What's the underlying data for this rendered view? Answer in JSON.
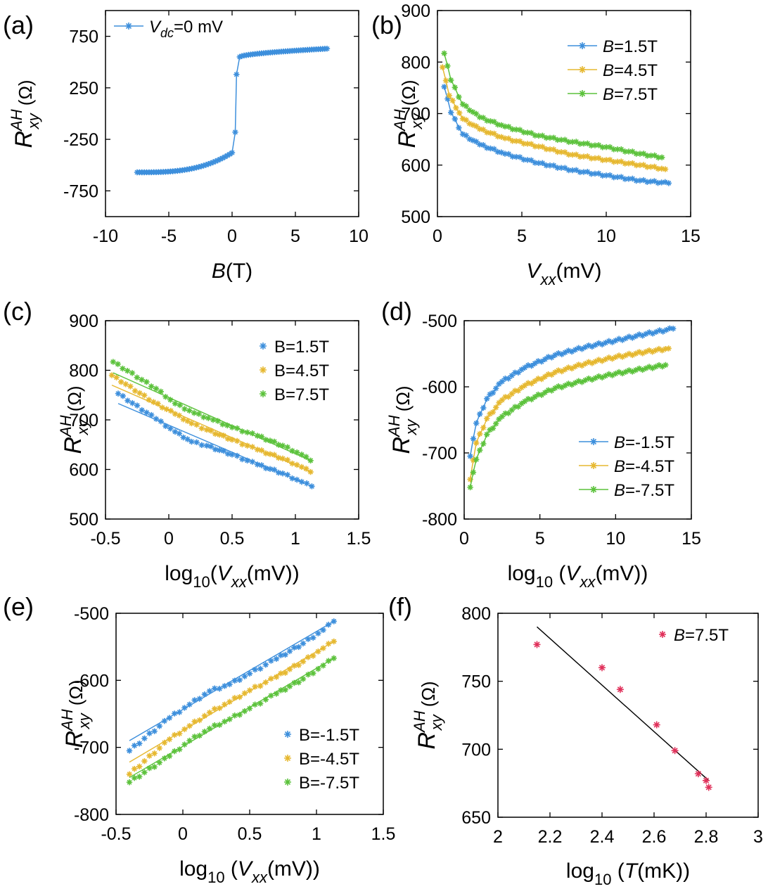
{
  "chart_data": [
    {
      "panel": "(a)",
      "type": "line",
      "xlabel": {
        "italic": "B",
        "rest": "(T)"
      },
      "ylabel": {
        "main": "R",
        "sup": "AH",
        "sub": "xy",
        "unit": "(Ω)"
      },
      "xlim": [
        -10,
        10
      ],
      "ylim": [
        -1000,
        1000
      ],
      "xticks": [
        -10,
        -5,
        0,
        5,
        10
      ],
      "yticks": [
        -750,
        -250,
        250,
        750
      ],
      "legend": {
        "position": "top-left"
      },
      "series": [
        {
          "name": "Vdc=0 mV",
          "label_parts": {
            "italic": "V",
            "sub": "dc",
            "rest": "=0 mV"
          },
          "color": "#3d8fdc",
          "marker": "star",
          "line": true,
          "curve": {
            "kind": "hysteresis",
            "x_start": -7.5,
            "x_end": 7.5,
            "low_start": -570,
            "low_end": -380,
            "high_start": 550,
            "high_end": 630,
            "switch_x": 0.3
          }
        }
      ]
    },
    {
      "panel": "(b)",
      "type": "line",
      "xlabel": {
        "italic": "V",
        "sub": "xx",
        "rest": "(mV)"
      },
      "ylabel": {
        "main": "R",
        "sup": "AH",
        "sub": "xy",
        "unit": "(Ω)"
      },
      "xlim": [
        0,
        15
      ],
      "ylim": [
        500,
        900
      ],
      "xticks": [
        0,
        5,
        10,
        15
      ],
      "yticks": [
        500,
        600,
        700,
        800,
        900
      ],
      "legend": {
        "position": "top-right"
      },
      "series": [
        {
          "name": "B=1.5T",
          "label_parts": {
            "italic": "B",
            "rest": "=1.5T"
          },
          "color": "#3d8fdc",
          "marker": "star",
          "line": true,
          "x": [
            0.4,
            0.8,
            1.5,
            2.5,
            4,
            6,
            8,
            10,
            12,
            13.7
          ],
          "y": [
            752,
            702,
            660,
            640,
            622,
            604,
            590,
            580,
            570,
            565
          ]
        },
        {
          "name": "B=4.5T",
          "label_parts": {
            "italic": "B",
            "rest": "=4.5T"
          },
          "color": "#e6b830",
          "marker": "star",
          "line": true,
          "x": [
            0.3,
            0.7,
            1.5,
            2.5,
            4,
            6,
            8,
            10,
            12,
            13.5
          ],
          "y": [
            790,
            735,
            690,
            670,
            652,
            636,
            620,
            610,
            600,
            592
          ]
        },
        {
          "name": "B=7.5T",
          "label_parts": {
            "italic": "B",
            "rest": "=7.5T"
          },
          "color": "#5cc23c",
          "marker": "star",
          "line": true,
          "x": [
            0.4,
            0.8,
            1.5,
            2.5,
            4,
            6,
            8,
            10,
            12,
            13.3
          ],
          "y": [
            817,
            765,
            718,
            693,
            675,
            657,
            645,
            635,
            622,
            615
          ]
        }
      ]
    },
    {
      "panel": "(c)",
      "type": "scatter",
      "xlabel": {
        "pre": "log",
        "pre_sub": "10",
        "open": "(",
        "italic": "V",
        "sub": "xx",
        "rest": "(mV))"
      },
      "ylabel": {
        "main": "R",
        "sup": "AH",
        "sub": "xy",
        "unit": "(Ω)"
      },
      "xlim": [
        -0.5,
        1.5
      ],
      "ylim": [
        500,
        900
      ],
      "xticks": [
        -0.5,
        0,
        0.5,
        1,
        1.5
      ],
      "yticks": [
        500,
        600,
        700,
        800,
        900
      ],
      "legend": {
        "position": "top-right"
      },
      "series": [
        {
          "name": "B=1.5T",
          "color": "#3d8fdc",
          "marker": "star",
          "x": [
            -0.4,
            -0.1,
            0.05,
            0.18,
            0.3,
            0.5,
            0.7,
            0.9,
            1.05,
            1.13
          ],
          "y": [
            753,
            702,
            676,
            656,
            648,
            630,
            610,
            592,
            575,
            566
          ],
          "fit": {
            "x": [
              -0.4,
              1.13
            ],
            "y": [
              733,
              566
            ]
          }
        },
        {
          "name": "B=4.5T",
          "color": "#e6b830",
          "marker": "star",
          "x": [
            -0.45,
            -0.12,
            0.05,
            0.18,
            0.3,
            0.5,
            0.7,
            0.9,
            1.05,
            1.12
          ],
          "y": [
            790,
            736,
            712,
            693,
            680,
            660,
            640,
            622,
            605,
            595
          ],
          "fit": {
            "x": [
              -0.45,
              1.12
            ],
            "y": [
              770,
              595
            ]
          }
        },
        {
          "name": "B=7.5T",
          "color": "#5cc23c",
          "marker": "star",
          "x": [
            -0.44,
            -0.1,
            0.05,
            0.2,
            0.35,
            0.5,
            0.7,
            0.9,
            1.05,
            1.12
          ],
          "y": [
            817,
            763,
            733,
            714,
            700,
            685,
            668,
            648,
            630,
            618
          ],
          "fit": {
            "x": [
              -0.44,
              1.12
            ],
            "y": [
              795,
              618
            ]
          }
        }
      ]
    },
    {
      "panel": "(d)",
      "type": "line",
      "xlabel": {
        "pre": "log",
        "pre_sub": "10",
        "open": " (",
        "italic": "V",
        "sub": "xx",
        "rest": "(mV))"
      },
      "ylabel": {
        "main": "R",
        "sup": "AH",
        "sub": "xy",
        "unit": "(Ω)"
      },
      "xlim": [
        0,
        15
      ],
      "ylim": [
        -800,
        -500
      ],
      "xticks": [
        0,
        5,
        10,
        15
      ],
      "yticks": [
        -800,
        -700,
        -600,
        -500
      ],
      "legend": {
        "position": "bottom-right"
      },
      "series": [
        {
          "name": "B=-1.5T",
          "label_parts": {
            "italic": "B",
            "rest": "=-1.5T"
          },
          "color": "#3d8fdc",
          "marker": "star",
          "line": true,
          "x": [
            0.4,
            0.8,
            1.5,
            2.5,
            4,
            6,
            8,
            10,
            12,
            13.8
          ],
          "y": [
            -705,
            -655,
            -618,
            -592,
            -571,
            -552,
            -540,
            -530,
            -520,
            -512
          ]
        },
        {
          "name": "B=-4.5T",
          "label_parts": {
            "italic": "B",
            "rest": "=-4.5T"
          },
          "color": "#e6b830",
          "marker": "star",
          "line": true,
          "x": [
            0.4,
            0.8,
            1.5,
            2.5,
            4,
            6,
            8,
            10,
            12,
            13.5
          ],
          "y": [
            -740,
            -685,
            -648,
            -620,
            -598,
            -578,
            -565,
            -555,
            -547,
            -542
          ]
        },
        {
          "name": "B=-7.5T",
          "label_parts": {
            "italic": "B",
            "rest": "=-7.5T"
          },
          "color": "#5cc23c",
          "marker": "star",
          "line": true,
          "x": [
            0.4,
            0.8,
            1.5,
            2.5,
            4,
            6,
            8,
            10,
            12,
            13.3
          ],
          "y": [
            -752,
            -710,
            -672,
            -645,
            -622,
            -602,
            -590,
            -580,
            -572,
            -567
          ]
        }
      ]
    },
    {
      "panel": "(e)",
      "type": "scatter",
      "xlabel": {
        "pre": "log",
        "pre_sub": "10",
        "open": " (",
        "italic": "V",
        "sub": "xx",
        "rest": "(mV))"
      },
      "ylabel": {
        "main": "R",
        "sup": "AH",
        "sub": "xy",
        "unit": "(Ω)"
      },
      "xlim": [
        -0.5,
        1.5
      ],
      "ylim": [
        -800,
        -500
      ],
      "xticks": [
        -0.5,
        0,
        0.5,
        1,
        1.5
      ],
      "yticks": [
        -800,
        -700,
        -600,
        -500
      ],
      "legend": {
        "position": "bottom-right"
      },
      "series": [
        {
          "name": "B=-1.5T",
          "color": "#3d8fdc",
          "marker": "star",
          "x": [
            -0.4,
            -0.1,
            0.05,
            0.2,
            0.35,
            0.5,
            0.7,
            0.9,
            1.05,
            1.13
          ],
          "y": [
            -705,
            -656,
            -636,
            -616,
            -606,
            -590,
            -568,
            -545,
            -525,
            -512
          ],
          "fit": {
            "x": [
              -0.4,
              1.13
            ],
            "y": [
              -690,
              -512
            ]
          }
        },
        {
          "name": "B=-4.5T",
          "color": "#e6b830",
          "marker": "star",
          "x": [
            -0.4,
            -0.1,
            0.05,
            0.2,
            0.35,
            0.5,
            0.7,
            0.9,
            1.05,
            1.13
          ],
          "y": [
            -740,
            -688,
            -668,
            -648,
            -632,
            -615,
            -595,
            -572,
            -552,
            -542
          ],
          "fit": {
            "x": [
              -0.4,
              1.13
            ],
            "y": [
              -722,
              -542
            ]
          }
        },
        {
          "name": "B=-7.5T",
          "color": "#5cc23c",
          "marker": "star",
          "x": [
            -0.4,
            -0.1,
            0.05,
            0.2,
            0.35,
            0.5,
            0.7,
            0.9,
            1.05,
            1.13
          ],
          "y": [
            -752,
            -713,
            -690,
            -672,
            -658,
            -642,
            -620,
            -598,
            -578,
            -567
          ],
          "fit": {
            "x": [
              -0.4,
              1.13
            ],
            "y": [
              -745,
              -567
            ]
          }
        }
      ]
    },
    {
      "panel": "(f)",
      "type": "scatter",
      "xlabel": {
        "pre": "log",
        "pre_sub": "10",
        "open": " (",
        "italic": "T",
        "rest": "(mK))"
      },
      "ylabel": {
        "main": "R",
        "sup": "AH",
        "sub": "xy",
        "unit": "(Ω)"
      },
      "xlim": [
        2,
        3
      ],
      "ylim": [
        650,
        800
      ],
      "xticks": [
        2,
        2.2,
        2.4,
        2.6,
        2.8,
        3
      ],
      "yticks": [
        650,
        700,
        750,
        800
      ],
      "legend": {
        "position": "top-right"
      },
      "series": [
        {
          "name": "B=7.5T",
          "label_parts": {
            "italic": "B",
            "rest": "=7.5T"
          },
          "color": "#e0305a",
          "marker": "star",
          "x": [
            2.15,
            2.4,
            2.47,
            2.61,
            2.68,
            2.77,
            2.8,
            2.81
          ],
          "y": [
            777,
            760,
            744,
            718,
            699,
            682,
            677,
            672
          ],
          "fit": {
            "x": [
              2.15,
              2.81
            ],
            "y": [
              790,
              677
            ],
            "color": "#000000"
          }
        }
      ]
    }
  ]
}
